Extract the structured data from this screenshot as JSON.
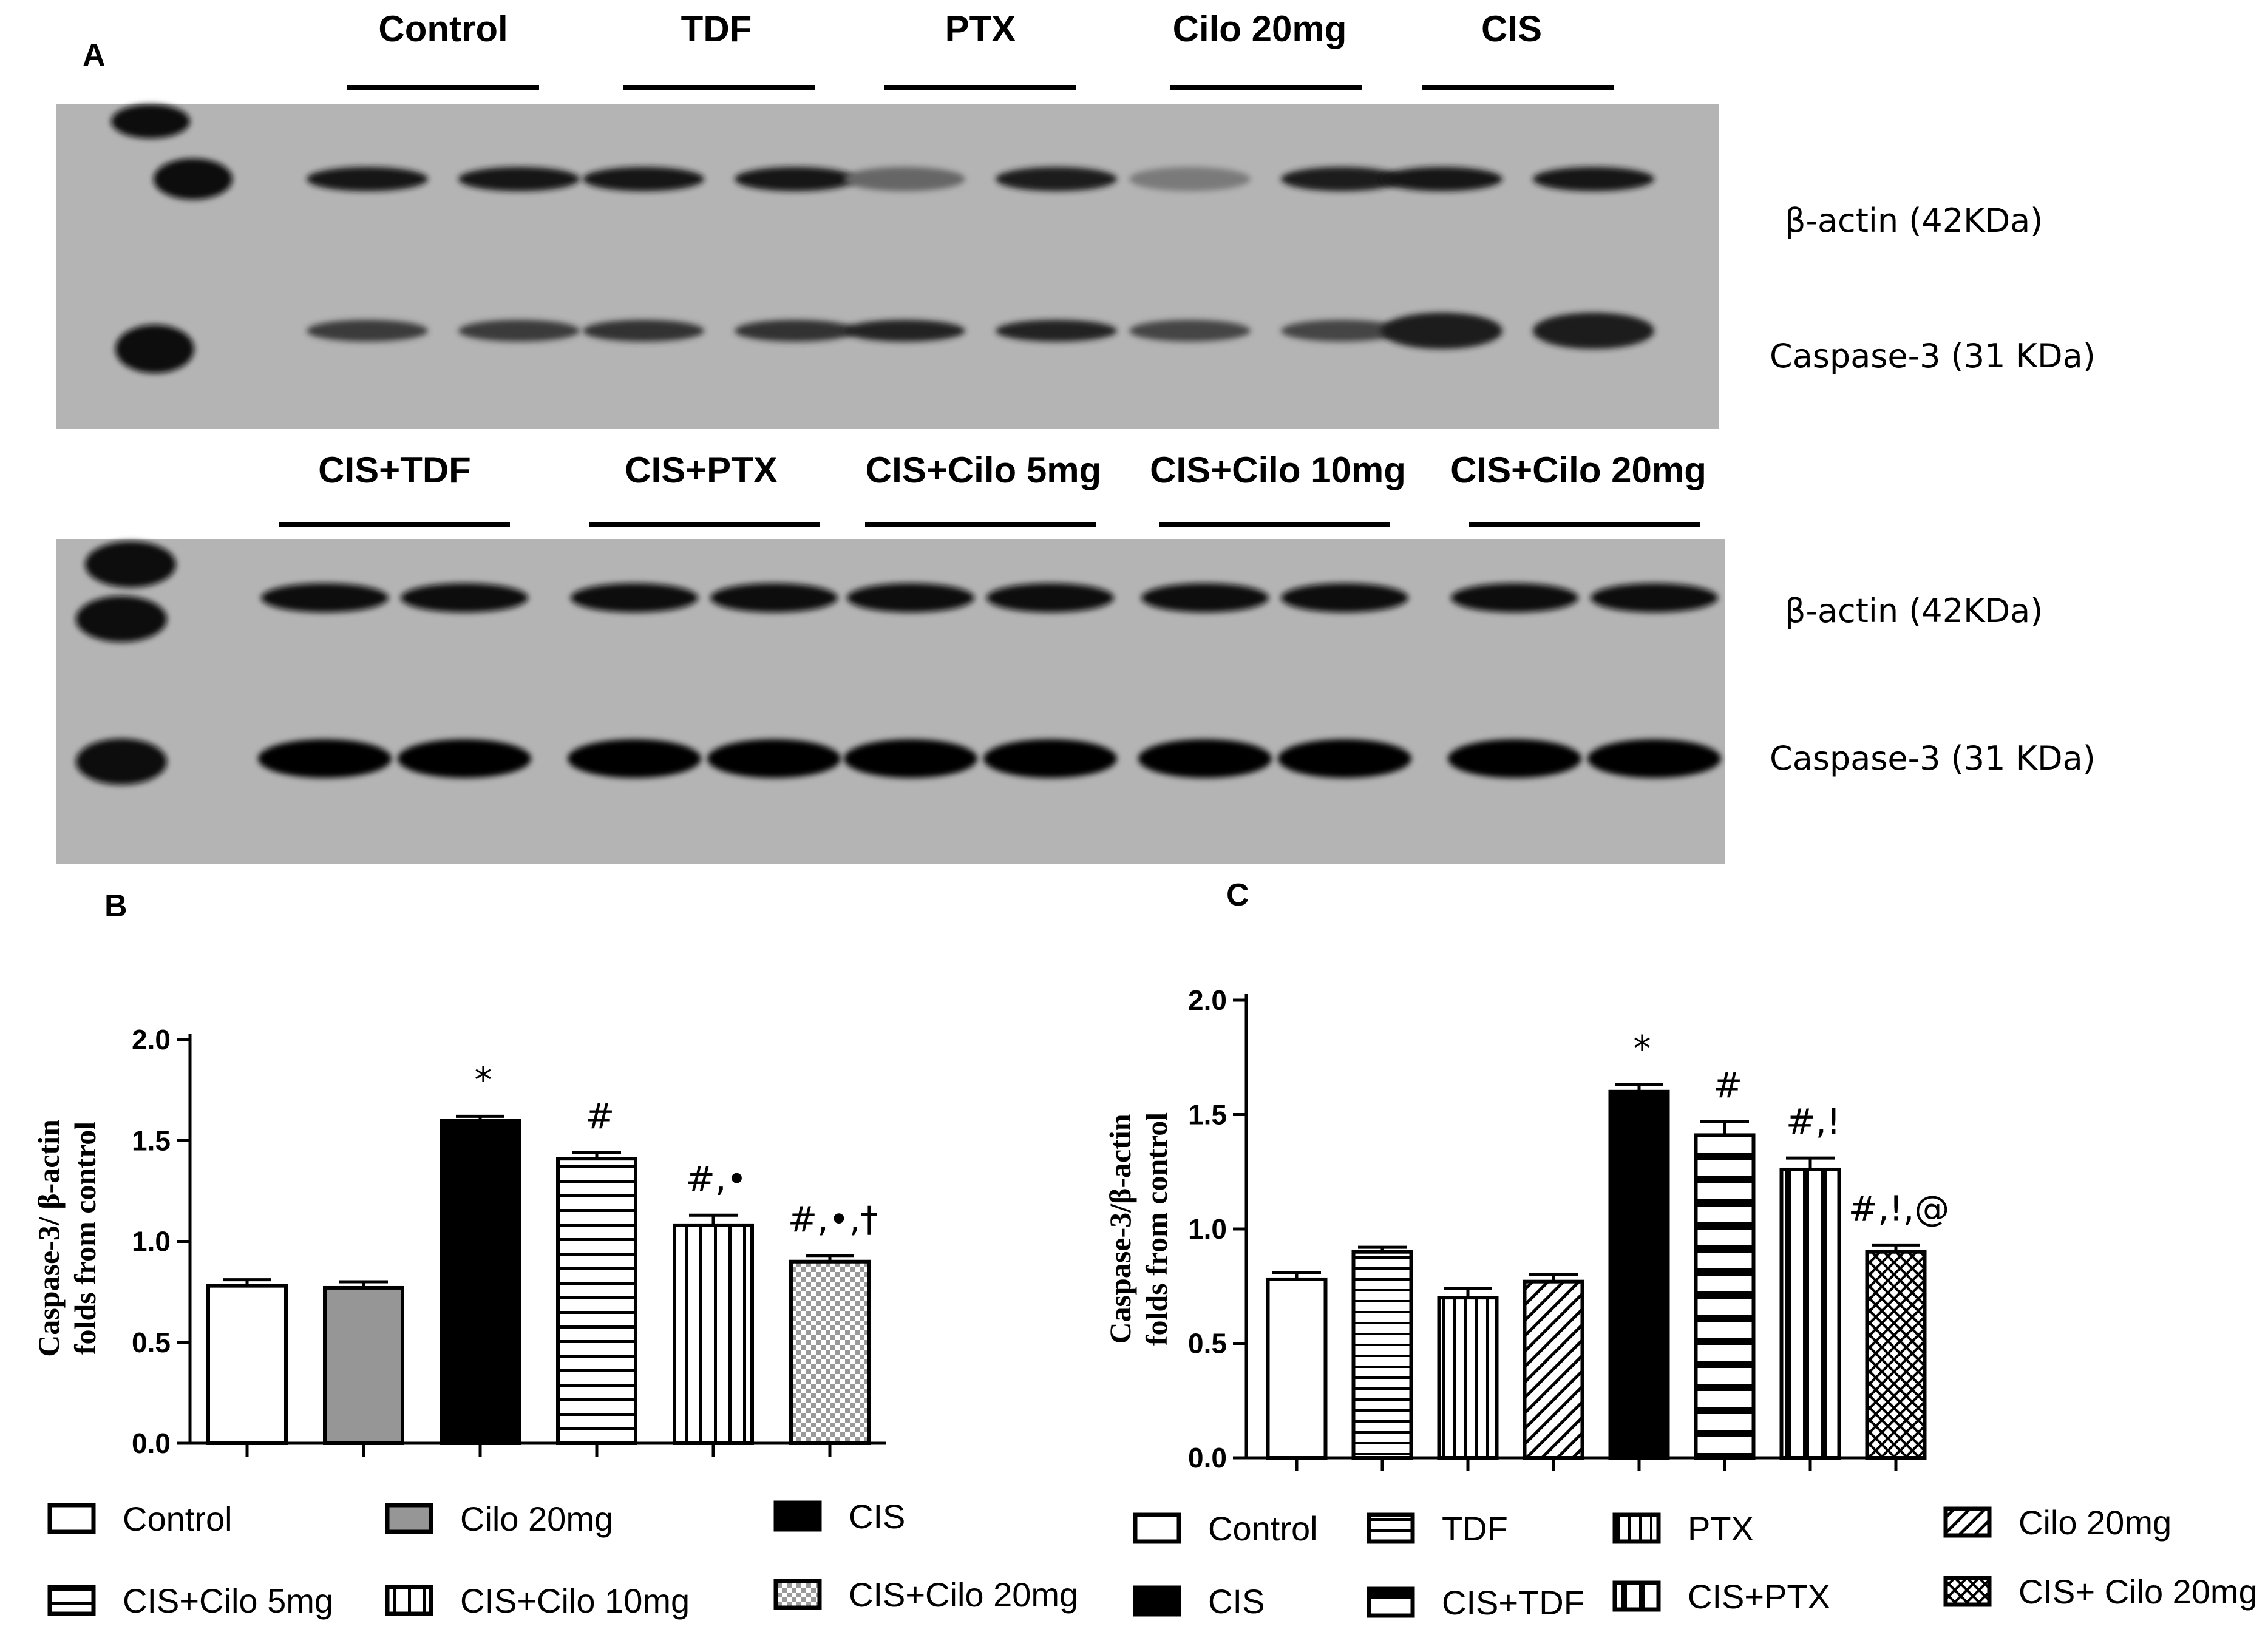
{
  "panels": {
    "a": "A",
    "b": "B",
    "c": "C"
  },
  "blot": {
    "top_lanes": [
      "Control",
      "TDF",
      "PTX",
      "Cilo 20mg",
      "CIS"
    ],
    "bottom_lanes": [
      "CIS+TDF",
      "CIS+PTX",
      "CIS+Cilo 5mg",
      "CIS+Cilo 10mg",
      "CIS+Cilo 20mg"
    ],
    "protein_labels": [
      "β-actin (42KDa)",
      "Caspase-3 (31 KDa)"
    ]
  },
  "chart_data": [
    {
      "type": "bar",
      "panel": "B",
      "ylabel_lines": [
        "Caspase-3/ β-actin",
        "folds from control"
      ],
      "ylim": [
        0,
        2.0
      ],
      "yticks": [
        "0.0",
        "0.5",
        "1.0",
        "1.5",
        "2.0"
      ],
      "categories": [
        "Control",
        "Cilo 20mg",
        "CIS",
        "CIS+Cilo 5mg",
        "CIS+Cilo 10mg",
        "CIS+Cilo 20mg"
      ],
      "values": [
        0.78,
        0.77,
        1.6,
        1.41,
        1.08,
        0.9
      ],
      "errors": [
        0.03,
        0.03,
        0.02,
        0.03,
        0.05,
        0.03
      ],
      "annotations": [
        "",
        "",
        "*",
        "#",
        "#,•",
        "#,•,†"
      ],
      "fill_patterns": [
        "white",
        "gray",
        "black",
        "hlines",
        "vlines",
        "checker"
      ],
      "legend": [
        "Control",
        "Cilo 20mg",
        "CIS",
        "CIS+Cilo 5mg",
        "CIS+Cilo 10mg",
        "CIS+Cilo 20mg"
      ],
      "grid": false,
      "legend_position": "bottom"
    },
    {
      "type": "bar",
      "panel": "C",
      "ylabel_lines": [
        "Caspase-3/β-actin",
        "folds from control"
      ],
      "ylim": [
        0,
        2.0
      ],
      "yticks": [
        "0.0",
        "0.5",
        "1.0",
        "1.5",
        "2.0"
      ],
      "categories": [
        "Control",
        "TDF",
        "PTX",
        "Cilo 20mg",
        "CIS",
        "CIS+TDF",
        "CIS+PTX",
        "CIS+ Cilo 20mg"
      ],
      "values": [
        0.78,
        0.9,
        0.7,
        0.77,
        1.6,
        1.41,
        1.26,
        0.9
      ],
      "errors": [
        0.03,
        0.02,
        0.04,
        0.03,
        0.03,
        0.06,
        0.05,
        0.03
      ],
      "annotations": [
        "",
        "",
        "",
        "",
        "*",
        "#",
        "#,!",
        "#,!,@"
      ],
      "fill_patterns": [
        "white",
        "hlines-thin",
        "vlines-thin",
        "diag",
        "black",
        "hlines-thick",
        "vlines-thick",
        "crosshatch"
      ],
      "legend": [
        "Control",
        "TDF",
        "PTX",
        "Cilo 20mg",
        "CIS",
        "CIS+TDF",
        "CIS+PTX",
        "CIS+ Cilo 20mg"
      ],
      "grid": false,
      "legend_position": "bottom"
    }
  ]
}
